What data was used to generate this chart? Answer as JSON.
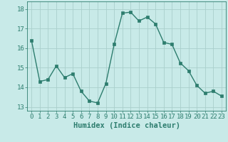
{
  "xlabel": "Humidex (Indice chaleur)",
  "ylabel": "",
  "x_values": [
    0,
    1,
    2,
    3,
    4,
    5,
    6,
    7,
    8,
    9,
    10,
    11,
    12,
    13,
    14,
    15,
    16,
    17,
    18,
    19,
    20,
    21,
    22,
    23
  ],
  "y_values": [
    16.4,
    14.3,
    14.4,
    15.1,
    14.5,
    14.7,
    13.8,
    13.3,
    13.2,
    14.2,
    16.2,
    17.8,
    17.85,
    17.4,
    17.6,
    17.25,
    16.3,
    16.2,
    15.25,
    14.85,
    14.1,
    13.7,
    13.8,
    13.55
  ],
  "line_color": "#2d7d6e",
  "marker_color": "#2d7d6e",
  "bg_color": "#c8eae8",
  "grid_color": "#aacfcc",
  "ylim": [
    12.8,
    18.4
  ],
  "yticks": [
    13,
    14,
    15,
    16,
    17,
    18
  ],
  "xticks": [
    0,
    1,
    2,
    3,
    4,
    5,
    6,
    7,
    8,
    9,
    10,
    11,
    12,
    13,
    14,
    15,
    16,
    17,
    18,
    19,
    20,
    21,
    22,
    23
  ],
  "tick_color": "#2d7d6e",
  "label_color": "#2d7d6e",
  "fontsize_ticks": 6.5,
  "fontsize_xlabel": 7.5,
  "marker_size": 2.5,
  "line_width": 1.0
}
